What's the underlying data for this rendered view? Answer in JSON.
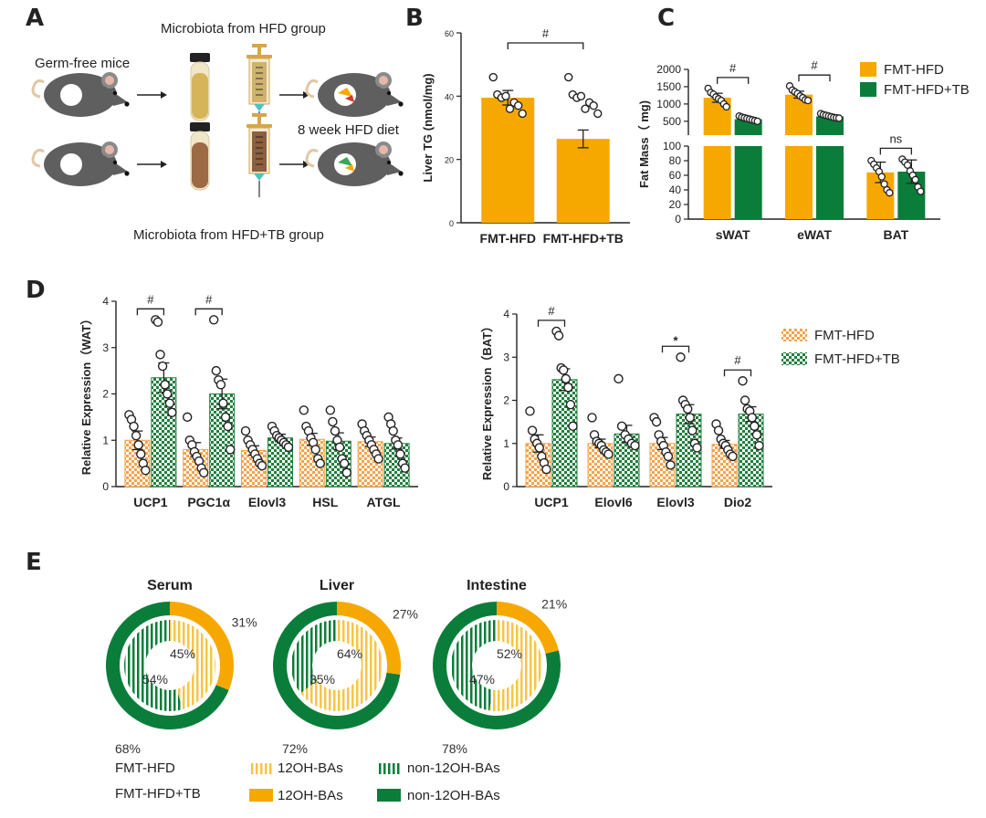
{
  "colors": {
    "orange": "#f7a800",
    "green": "#0b7d3a",
    "dark": "#222222"
  },
  "panels": {
    "a": "A",
    "b": "B",
    "c": "C",
    "d": "D",
    "e": "E"
  },
  "panelA": {
    "title_top": "Microbiota from HFD group",
    "germ_free": "Germ-free mice",
    "diet": "8 week HFD diet",
    "title_bottom": "Microbiota from HFD+TB group",
    "icons": [
      "mouse-icon",
      "tube-icon",
      "syringe-icon",
      "arrow-icon"
    ]
  },
  "chart_data": [
    {
      "id": "B",
      "type": "bar",
      "ylabel": "Liver TG (nmol/mg)",
      "ylim": [
        0,
        60
      ],
      "yticks": [
        0,
        20,
        40,
        60
      ],
      "categories": [
        "FMT-HFD",
        "FMT-HFD+TB"
      ],
      "series": [
        {
          "values": [
            39.5,
            26.5
          ],
          "errors": [
            2.3,
            2.8
          ]
        }
      ],
      "points": [
        [
          46,
          40.5,
          39.5,
          40,
          36,
          38,
          37,
          34.5
        ],
        [
          35,
          32,
          28.5,
          27,
          24,
          20,
          16,
          15.5
        ]
      ],
      "significance": [
        {
          "between": [
            0,
            1
          ],
          "label": "#"
        }
      ]
    },
    {
      "id": "C",
      "type": "bar",
      "ylabel": "Fat Mass（ mg)",
      "categories": [
        "sWAT",
        "eWAT",
        "BAT"
      ],
      "upper_ylim": [
        100,
        2000
      ],
      "upper_ticks": [
        500,
        1000,
        1500,
        2000
      ],
      "lower_ylim": [
        0,
        100
      ],
      "lower_ticks": [
        0,
        20,
        40,
        60,
        80,
        100
      ],
      "series": [
        {
          "name": "FMT-HFD",
          "values": [
            1180,
            1270,
            64
          ],
          "errors": [
            130,
            100,
            14
          ]
        },
        {
          "name": "FMT-HFD+TB",
          "values": [
            560,
            640,
            65
          ],
          "errors": [
            60,
            55,
            16
          ]
        }
      ],
      "points": [
        [
          [
            1450,
            1330,
            1280,
            1200,
            1150,
            1100,
            1000,
            920
          ],
          [
            1520,
            1400,
            1350,
            1300,
            1230,
            1180,
            1120,
            1100
          ],
          [
            80,
            75,
            70,
            65,
            58,
            48,
            40,
            36
          ]
        ],
        [
          [
            650,
            620,
            600,
            580,
            560,
            540,
            520,
            500
          ],
          [
            720,
            690,
            670,
            650,
            630,
            610,
            600,
            590
          ],
          [
            82,
            78,
            74,
            66,
            60,
            54,
            44,
            38
          ]
        ]
      ],
      "significance": [
        {
          "category": 0,
          "label": "#"
        },
        {
          "category": 1,
          "label": "#"
        },
        {
          "category": 2,
          "label": "ns"
        }
      ],
      "legend": "top-right"
    },
    {
      "id": "D-WAT",
      "type": "bar",
      "ylabel": "Relative Expression（WAT）",
      "ylim": [
        0,
        4
      ],
      "yticks": [
        0,
        1,
        2,
        3,
        4
      ],
      "categories": [
        "UCP1",
        "PGC1α",
        "Elovl3",
        "HSL",
        "ATGL"
      ],
      "series": [
        {
          "name": "FMT-HFD",
          "values": [
            1.0,
            0.8,
            0.78,
            1.02,
            0.97
          ],
          "errors": [
            0.2,
            0.15,
            0.1,
            0.13,
            0.1
          ]
        },
        {
          "name": "FMT-HFD+TB",
          "values": [
            2.35,
            2.0,
            1.05,
            0.98,
            0.93
          ],
          "errors": [
            0.32,
            0.32,
            0.08,
            0.18,
            0.12
          ]
        }
      ],
      "points": [
        [
          [
            1.55,
            1.45,
            1.3,
            1.1,
            0.9,
            0.7,
            0.5,
            0.35
          ],
          [
            1.5,
            1.0,
            0.9,
            0.75,
            0.65,
            0.55,
            0.4,
            0.3
          ],
          [
            1.2,
            1.0,
            0.9,
            0.8,
            0.7,
            0.6,
            0.5,
            0.45
          ],
          [
            1.65,
            1.3,
            1.2,
            1.05,
            0.95,
            0.8,
            0.6,
            0.5
          ],
          [
            1.35,
            1.2,
            1.1,
            1.0,
            0.9,
            0.8,
            0.7,
            0.6
          ]
        ],
        [
          [
            3.6,
            3.55,
            2.85,
            2.6,
            2.2,
            2.0,
            1.8,
            1.6
          ],
          [
            3.6,
            2.5,
            2.3,
            2.2,
            1.8,
            1.5,
            1.3,
            0.8
          ],
          [
            1.3,
            1.2,
            1.1,
            1.05,
            1.0,
            0.95,
            0.9,
            0.85
          ],
          [
            1.65,
            1.4,
            1.2,
            1.0,
            0.85,
            0.6,
            0.5,
            0.3
          ],
          [
            1.5,
            1.35,
            1.2,
            1.0,
            0.9,
            0.7,
            0.5,
            0.4
          ]
        ]
      ],
      "significance": [
        {
          "category": 0,
          "label": "#"
        },
        {
          "category": 1,
          "label": "#"
        }
      ]
    },
    {
      "id": "D-BAT",
      "type": "bar",
      "ylabel": "Relative Expression（BAT）",
      "ylim": [
        0,
        4
      ],
      "yticks": [
        0,
        1,
        2,
        3,
        4
      ],
      "categories": [
        "UCP1",
        "Elovl6",
        "Elovl3",
        "Dio2"
      ],
      "series": [
        {
          "name": "FMT-HFD",
          "values": [
            1.0,
            1.0,
            1.0,
            0.98
          ],
          "errors": [
            0.2,
            0.1,
            0.14,
            0.09
          ]
        },
        {
          "name": "FMT-HFD+TB",
          "values": [
            2.48,
            1.22,
            1.68,
            1.68
          ],
          "errors": [
            0.25,
            0.2,
            0.22,
            0.17
          ]
        }
      ],
      "points": [
        [
          [
            1.75,
            1.3,
            1.1,
            1.0,
            0.9,
            0.7,
            0.55,
            0.4
          ],
          [
            1.6,
            1.2,
            1.05,
            1.0,
            0.95,
            0.85,
            0.8,
            0.75
          ],
          [
            1.6,
            1.5,
            1.2,
            1.05,
            0.95,
            0.8,
            0.7,
            0.5
          ],
          [
            1.45,
            1.3,
            1.1,
            1.0,
            0.95,
            0.85,
            0.75,
            0.7
          ]
        ],
        [
          [
            3.6,
            3.5,
            2.75,
            2.7,
            2.5,
            2.3,
            1.9,
            1.4
          ],
          [
            2.5,
            1.4,
            1.2,
            1.1,
            1.0,
            0.95
          ],
          [
            3.0,
            2.0,
            1.9,
            1.8,
            1.6,
            1.3,
            1.0,
            0.9
          ],
          [
            2.45,
            2.0,
            1.8,
            1.75,
            1.6,
            1.4,
            1.2,
            0.95
          ]
        ]
      ],
      "significance": [
        {
          "category": 0,
          "label": "#"
        },
        {
          "category": 2,
          "label": "*"
        },
        {
          "category": 3,
          "label": "#"
        }
      ]
    },
    {
      "id": "E",
      "type": "pie",
      "charts": [
        {
          "title": "Serum",
          "outer_12OH": 31,
          "outer_non12OH": 68,
          "inner_12OH": 45,
          "inner_non12OH": 54
        },
        {
          "title": "Liver",
          "outer_12OH": 27,
          "outer_non12OH": 72,
          "inner_12OH": 64,
          "inner_non12OH": 35
        },
        {
          "title": "Intestine",
          "outer_12OH": 21,
          "outer_non12OH": 78,
          "inner_12OH": 52,
          "inner_non12OH": 47
        }
      ],
      "legend": {
        "row1": "FMT-HFD",
        "row2": "FMT-HFD+TB",
        "cat1": "12OH-BAs",
        "cat2": "non-12OH-BAs"
      }
    }
  ]
}
